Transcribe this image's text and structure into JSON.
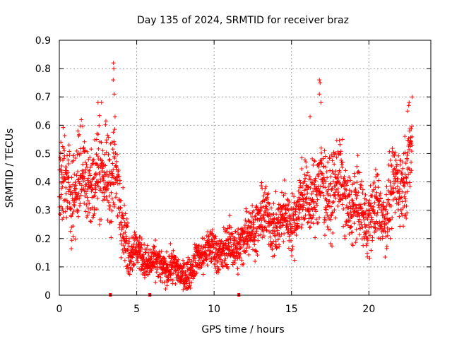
{
  "chart_data": {
    "type": "scatter",
    "title": "Day 135 of 2024, SRMTID for receiver braz",
    "xlabel": "GPS time / hours",
    "ylabel": "SRMTID / TECUs",
    "xlim": [
      0,
      24
    ],
    "ylim": [
      0,
      0.9
    ],
    "xticks": [
      0,
      5,
      10,
      15,
      20
    ],
    "xtick_labels": [
      "0",
      "5",
      "10",
      "15",
      "20"
    ],
    "yticks": [
      0,
      0.1,
      0.2,
      0.3,
      0.4,
      0.5,
      0.6,
      0.7,
      0.8,
      0.9
    ],
    "ytick_labels": [
      "0",
      "0.1",
      "0.2",
      "0.3",
      "0.4",
      "0.5",
      "0.6",
      "0.7",
      "0.8",
      "0.9"
    ],
    "grid": true,
    "marker": "+",
    "color": "#ff0000",
    "trend": {
      "x": [
        0,
        1,
        2,
        3,
        3.5,
        4,
        4.5,
        5,
        6,
        7,
        8,
        8.5,
        9,
        10,
        11,
        12,
        13,
        14,
        15,
        16,
        17,
        17.5,
        18,
        19,
        20,
        21,
        22,
        22.8
      ],
      "y": [
        0.35,
        0.4,
        0.42,
        0.42,
        0.45,
        0.28,
        0.17,
        0.15,
        0.11,
        0.1,
        0.08,
        0.07,
        0.15,
        0.16,
        0.16,
        0.2,
        0.28,
        0.25,
        0.27,
        0.35,
        0.38,
        0.37,
        0.4,
        0.3,
        0.28,
        0.3,
        0.4,
        0.5
      ]
    },
    "spread": {
      "x": [
        0,
        3.5,
        4,
        5,
        8.5,
        9,
        12,
        13,
        15,
        17,
        18,
        20,
        22.8
      ],
      "y": [
        0.1,
        0.1,
        0.07,
        0.04,
        0.03,
        0.04,
        0.05,
        0.06,
        0.06,
        0.09,
        0.08,
        0.07,
        0.09
      ]
    },
    "marker_count": 2400,
    "time_step_hours": 0.0095,
    "extreme_points": [
      {
        "x": 3.5,
        "y": 0.82
      },
      {
        "x": 3.52,
        "y": 0.8
      },
      {
        "x": 3.48,
        "y": 0.76
      },
      {
        "x": 3.55,
        "y": 0.71
      },
      {
        "x": 2.5,
        "y": 0.68
      },
      {
        "x": 3.6,
        "y": 0.63
      },
      {
        "x": 16.8,
        "y": 0.76
      },
      {
        "x": 16.85,
        "y": 0.75
      },
      {
        "x": 16.8,
        "y": 0.71
      },
      {
        "x": 16.9,
        "y": 0.68
      },
      {
        "x": 16.2,
        "y": 0.63
      },
      {
        "x": 22.8,
        "y": 0.7
      },
      {
        "x": 22.6,
        "y": 0.68
      },
      {
        "x": 22.5,
        "y": 0.65
      },
      {
        "x": 0.1,
        "y": 0.54
      },
      {
        "x": 1.2,
        "y": 0.58
      },
      {
        "x": 8.0,
        "y": 0.02
      },
      {
        "x": 7.5,
        "y": 0.04
      }
    ],
    "baseline_markers": [
      {
        "x": 3.3,
        "y": 0
      },
      {
        "x": 5.85,
        "y": 0
      },
      {
        "x": 11.6,
        "y": 0
      }
    ]
  }
}
